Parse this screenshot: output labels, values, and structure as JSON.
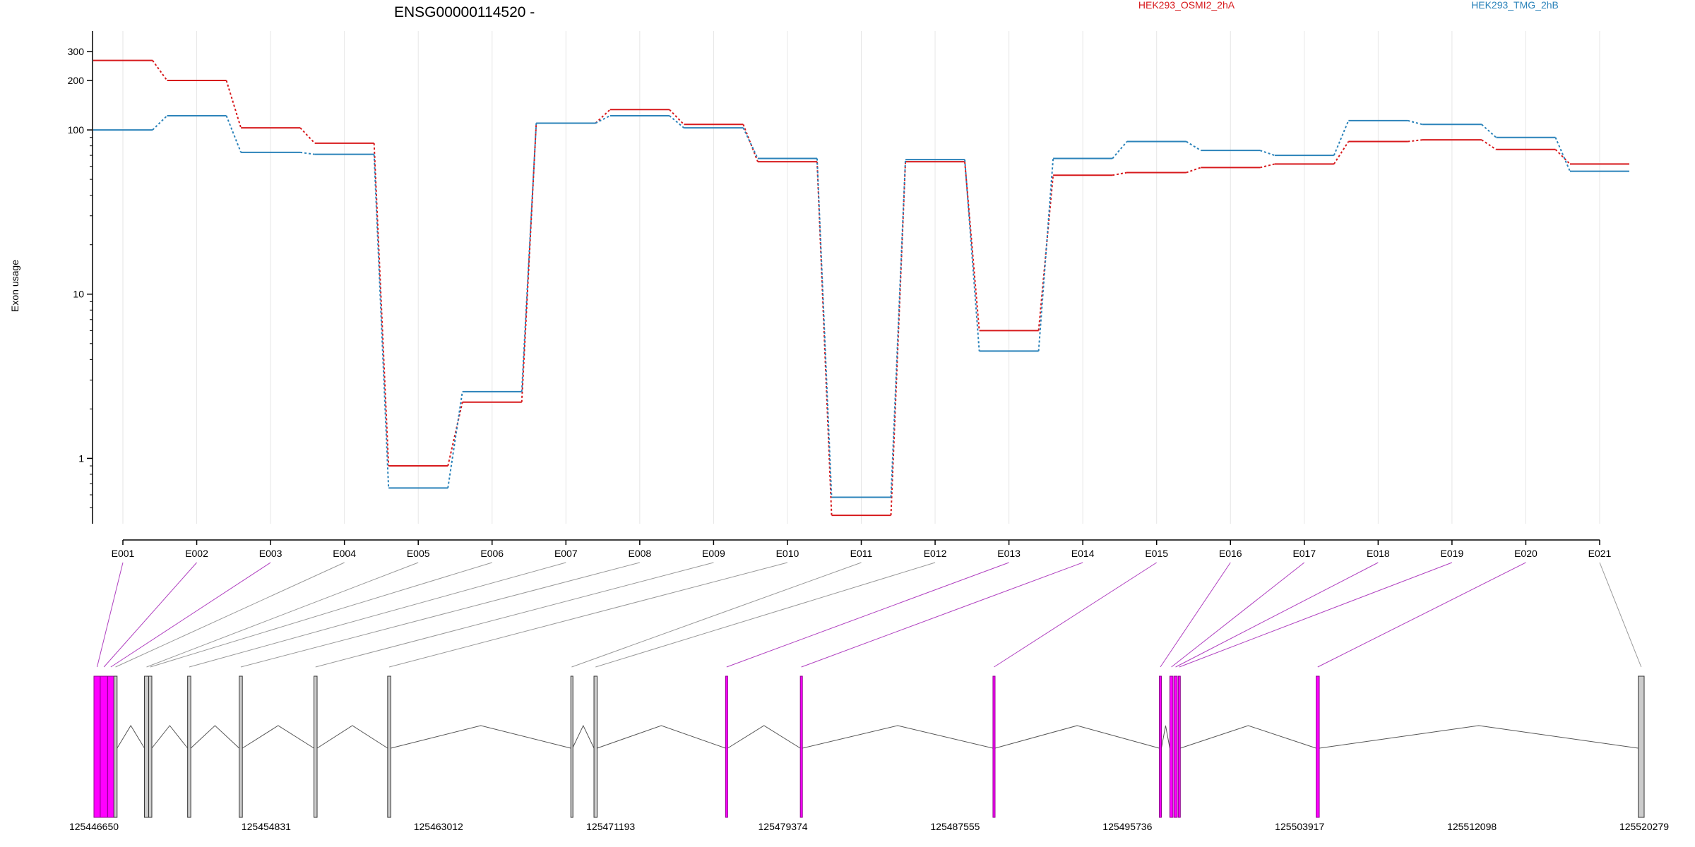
{
  "chart_data": {
    "type": "line",
    "title": "ENSG00000114520 -",
    "ylabel": "Exon usage",
    "y_scale": "log",
    "ylim": [
      0.4,
      400
    ],
    "yticks": [
      1,
      10,
      100,
      200,
      300
    ],
    "ytick_labels": [
      "1",
      "10",
      "100",
      "200",
      "300"
    ],
    "categories": [
      "E001",
      "E002",
      "E003",
      "E004",
      "E005",
      "E006",
      "E007",
      "E008",
      "E009",
      "E010",
      "E011",
      "E012",
      "E013",
      "E014",
      "E015",
      "E016",
      "E017",
      "E018",
      "E019",
      "E020",
      "E021"
    ],
    "series": [
      {
        "name": "HEK293_OSMI2_2hA",
        "color": "#d7191c",
        "values": [
          265,
          200,
          103,
          83,
          0.9,
          2.2,
          110,
          133,
          108,
          64,
          0.45,
          64,
          6,
          53,
          55,
          59,
          62,
          85,
          87,
          76,
          62
        ]
      },
      {
        "name": "HEK293_TMG_2hB",
        "color": "#2b83ba",
        "values": [
          100,
          122,
          73,
          71,
          0.66,
          2.55,
          110,
          122,
          103,
          67,
          0.58,
          66,
          4.5,
          67,
          85,
          75,
          70,
          114,
          108,
          90,
          56
        ]
      }
    ],
    "legend_placement": "top",
    "grid": "vertical-light"
  },
  "gene_model": {
    "coordinate_labels": [
      "125446650",
      "125454831",
      "125463012",
      "125471193",
      "125479374",
      "125487555",
      "125495736",
      "125503917",
      "125512098",
      "125520279"
    ],
    "range": [
      125446650,
      125520279
    ],
    "highlight_color": "#ff00ff",
    "normal_color": "#cccccc",
    "exons": [
      {
        "id": "E001",
        "start": 125446650,
        "end": 125446950,
        "highlight": true
      },
      {
        "id": "E002",
        "start": 125446950,
        "end": 125447300,
        "highlight": true
      },
      {
        "id": "E003",
        "start": 125447300,
        "end": 125447600,
        "highlight": true
      },
      {
        "id": "E004",
        "start": 125447600,
        "end": 125447750,
        "highlight": false
      },
      {
        "id": "E005",
        "start": 125449050,
        "end": 125449250,
        "highlight": false
      },
      {
        "id": "E006",
        "start": 125449250,
        "end": 125449400,
        "highlight": false
      },
      {
        "id": "E007",
        "start": 125451100,
        "end": 125451250,
        "highlight": false
      },
      {
        "id": "E008",
        "start": 125453550,
        "end": 125453700,
        "highlight": false
      },
      {
        "id": "E009",
        "start": 125457100,
        "end": 125457250,
        "highlight": false
      },
      {
        "id": "E010",
        "start": 125460600,
        "end": 125460750,
        "highlight": false
      },
      {
        "id": "E011",
        "start": 125469300,
        "end": 125469380,
        "highlight": false
      },
      {
        "id": "E012",
        "start": 125470400,
        "end": 125470550,
        "highlight": false
      },
      {
        "id": "E013",
        "start": 125476650,
        "end": 125476750,
        "highlight": true
      },
      {
        "id": "E014",
        "start": 125480200,
        "end": 125480300,
        "highlight": true
      },
      {
        "id": "E015",
        "start": 125489350,
        "end": 125489450,
        "highlight": true
      },
      {
        "id": "E016",
        "start": 125497250,
        "end": 125497350,
        "highlight": true
      },
      {
        "id": "E017",
        "start": 125497750,
        "end": 125497900,
        "highlight": true
      },
      {
        "id": "E018",
        "start": 125497950,
        "end": 125498100,
        "highlight": true
      },
      {
        "id": "E019",
        "start": 125498150,
        "end": 125498250,
        "highlight": true
      },
      {
        "id": "E020",
        "start": 125504700,
        "end": 125504850,
        "highlight": true
      },
      {
        "id": "E021",
        "start": 125520000,
        "end": 125520279,
        "highlight": false
      }
    ]
  }
}
